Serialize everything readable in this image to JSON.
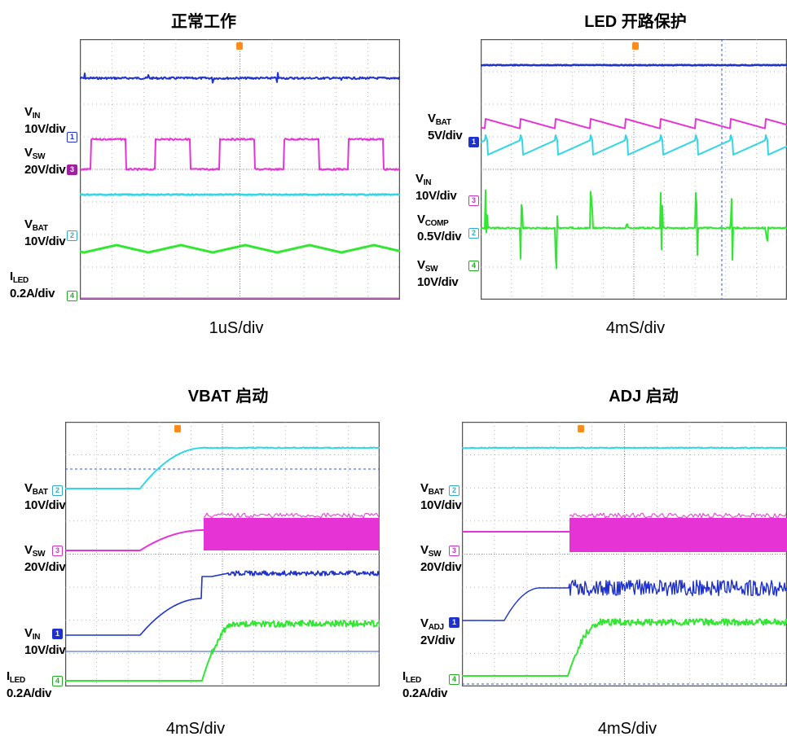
{
  "panels": [
    {
      "id": "normal",
      "title": "正常工作",
      "timebase": "1uS/div",
      "labels": [
        {
          "v": "V",
          "s": "IN",
          "t": "10V/div"
        },
        {
          "v": "V",
          "s": "SW",
          "t": "20V/div"
        },
        {
          "v": "V",
          "s": "BAT",
          "t": "10V/div"
        },
        {
          "v": "I",
          "s": "LED",
          "t": "0.2A/div"
        }
      ],
      "markers": [
        "1",
        "3",
        "2",
        "4"
      ]
    },
    {
      "id": "open",
      "title": "LED 开路保护",
      "timebase": "4mS/div",
      "labels": [
        {
          "v": "V",
          "s": "BAT",
          "t": "5V/div"
        },
        {
          "v": "V",
          "s": "IN",
          "t": "10V/div"
        },
        {
          "v": "V",
          "s": "COMP",
          "t": "0.5V/div"
        },
        {
          "v": "V",
          "s": "SW",
          "t": "10V/div"
        }
      ],
      "markers": [
        "1",
        "3",
        "2",
        "4"
      ]
    },
    {
      "id": "vbat",
      "title": "VBAT 启动",
      "timebase": "4mS/div",
      "labels": [
        {
          "v": "V",
          "s": "BAT",
          "t": "10V/div"
        },
        {
          "v": "V",
          "s": "SW",
          "t": "20V/div"
        },
        {
          "v": "V",
          "s": "IN",
          "t": "10V/div"
        },
        {
          "v": "I",
          "s": "LED",
          "t": "0.2A/div"
        }
      ],
      "markers": [
        "2",
        "3",
        "1",
        "4"
      ]
    },
    {
      "id": "adj",
      "title": "ADJ 启动",
      "timebase": "4mS/div",
      "labels": [
        {
          "v": "V",
          "s": "BAT",
          "t": "10V/div"
        },
        {
          "v": "V",
          "s": "SW",
          "t": "20V/div"
        },
        {
          "v": "V",
          "s": "ADJ",
          "t": "2V/div"
        },
        {
          "v": "I",
          "s": "LED",
          "t": "0.2A/div"
        }
      ],
      "markers": [
        "2",
        "3",
        "1",
        "4"
      ]
    }
  ],
  "colors": {
    "ch1": "#1f33cc",
    "ch2": "#33d6e6",
    "ch3": "#e633d6",
    "ch4": "#33e633",
    "grid": "#9a9a9a",
    "frame": "#555555",
    "trigger": "#ff8c1a"
  },
  "chart_data": [
    {
      "type": "line",
      "title": "正常工作",
      "xlabel": "1uS/div",
      "series": [
        {
          "name": "VIN 10V/div",
          "shape": "flat with small switching spikes"
        },
        {
          "name": "VSW 20V/div",
          "shape": "square wave, about 5 periods across screen"
        },
        {
          "name": "VBAT 10V/div",
          "shape": "flat"
        },
        {
          "name": "ILED 0.2A/div",
          "shape": "small triangular ripple around constant level"
        }
      ],
      "grid": true
    },
    {
      "type": "line",
      "title": "LED 开路保护",
      "xlabel": "4mS/div",
      "series": [
        {
          "name": "VBAT 5V/div",
          "shape": "flat"
        },
        {
          "name": "VIN 10V/div",
          "shape": "sawtooth ramp, reset about every 0.8 div"
        },
        {
          "name": "VCOMP 0.5V/div",
          "shape": "sawtooth following VIN, slightly lower"
        },
        {
          "name": "VSW 10V/div",
          "shape": "flat with periodic bursts of spikes"
        }
      ],
      "grid": true
    },
    {
      "type": "line",
      "title": "VBAT 启动",
      "xlabel": "4mS/div",
      "series": [
        {
          "name": "VBAT 10V/div",
          "shape": "step rising around 1.3 div to steady level"
        },
        {
          "name": "VSW 20V/div",
          "shape": "rises with VBAT, then dense switching from ~2.5 div"
        },
        {
          "name": "VIN 10V/div",
          "shape": "two-stage rise, then noisy steady level"
        },
        {
          "name": "ILED 0.2A/div",
          "shape": "zero until ~2.4 div, then rises to steady level"
        }
      ],
      "grid": true
    },
    {
      "type": "line",
      "title": "ADJ 启动",
      "xlabel": "4mS/div",
      "series": [
        {
          "name": "VBAT 10V/div",
          "shape": "flat high level"
        },
        {
          "name": "VSW 20V/div",
          "shape": "flat until ~1.8 div, then dense switching"
        },
        {
          "name": "VADJ 2V/div",
          "shape": "rises near 0.7 div to steady level, noisy after ~1.8 div"
        },
        {
          "name": "ILED 0.2A/div",
          "shape": "zero until ~1.8 div, then rises to steady level"
        }
      ],
      "grid": true
    }
  ]
}
